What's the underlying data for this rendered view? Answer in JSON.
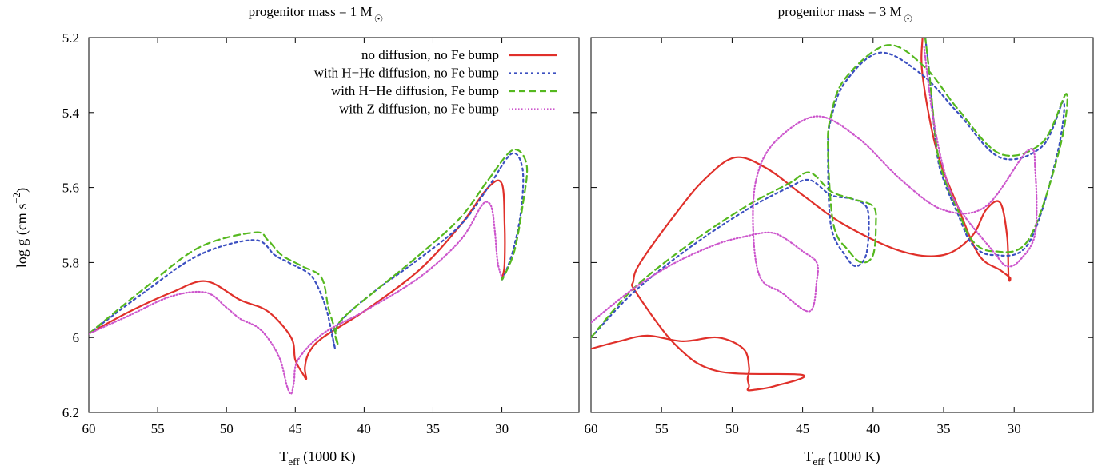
{
  "figure": {
    "ylabel_main": "log g (cm s",
    "ylabel_exp": "−2",
    "ylabel_close": ")",
    "xlabel_main": "T",
    "xlabel_sub": "eff",
    "xlabel_rest": " (1000 K)"
  },
  "colors": {
    "no_diffusion": "#e0302a",
    "hhe_no_fe": "#3b4fc0",
    "hhe_fe": "#55b81f",
    "z_no_fe": "#cc55cc"
  },
  "chart_data": [
    {
      "type": "line",
      "title_main": "progenitor mass = 1 M",
      "title_sun": "☉",
      "xlabel": "T_eff (1000 K)",
      "ylabel": "log g (cm s^-2)",
      "xlim": [
        60,
        24.4
      ],
      "ylim": [
        6.2,
        5.2
      ],
      "x_ticks": [
        "60",
        "55",
        "50",
        "45",
        "40",
        "35",
        "30"
      ],
      "y_ticks": [
        "5.2",
        "5.4",
        "5.6",
        "5.8",
        "6",
        "6.2"
      ],
      "legend_position": "top-right",
      "series": [
        {
          "name": "no diffusion, no Fe bump",
          "color": "#e0302a",
          "dash": "",
          "x": [
            60,
            57,
            54,
            51.5,
            49,
            47,
            45.3,
            45,
            44.4,
            44.2,
            44.3,
            44,
            43,
            40,
            36,
            33,
            31,
            30,
            29.8,
            29.8,
            29.9,
            30
          ],
          "y": [
            5.99,
            5.93,
            5.88,
            5.85,
            5.9,
            5.93,
            6,
            6.06,
            6.1,
            6.11,
            6.08,
            6.04,
            6,
            5.93,
            5.82,
            5.7,
            5.6,
            5.59,
            5.7,
            5.8,
            5.83,
            5.84
          ]
        },
        {
          "name": "with H−He diffusion, no Fe bump",
          "color": "#3b4fc0",
          "dash": "3,4",
          "x": [
            60,
            56,
            52,
            48,
            46.5,
            45.5,
            44,
            43.3,
            42.7,
            42.3,
            42.1,
            42.3,
            42,
            41,
            39,
            36,
            33,
            31,
            29.3,
            28.5,
            28.6,
            29.2,
            29.9,
            30
          ],
          "y": [
            5.99,
            5.88,
            5.78,
            5.74,
            5.78,
            5.8,
            5.83,
            5.87,
            5.93,
            6,
            6.03,
            5.99,
            5.97,
            5.93,
            5.87,
            5.79,
            5.7,
            5.6,
            5.51,
            5.55,
            5.66,
            5.77,
            5.84,
            5.84
          ]
        },
        {
          "name": "with H−He diffusion, Fe bump",
          "color": "#55b81f",
          "dash": "8,5",
          "x": [
            60,
            56,
            52,
            48,
            47,
            46,
            44.5,
            43.1,
            42.6,
            42.2,
            41.9,
            42.1,
            41.8,
            41,
            39,
            36,
            33,
            31,
            29.2,
            28.2,
            28.5,
            29.1,
            29.9,
            30
          ],
          "y": [
            5.99,
            5.87,
            5.76,
            5.72,
            5.74,
            5.78,
            5.81,
            5.84,
            5.92,
            5.97,
            6.02,
            5.99,
            5.96,
            5.93,
            5.87,
            5.78,
            5.68,
            5.58,
            5.5,
            5.54,
            5.65,
            5.77,
            5.84,
            5.84
          ]
        },
        {
          "name": "with Z diffusion, no Fe bump",
          "color": "#cc55cc",
          "dash": "1.5,2.5",
          "x": [
            60,
            57,
            54,
            51.5,
            50,
            49,
            47.5,
            46.2,
            45.6,
            45.3,
            45.1,
            44.8,
            43,
            40,
            36,
            33,
            31.5,
            31,
            30.7,
            30.5,
            30.3,
            30
          ],
          "y": [
            5.99,
            5.94,
            5.89,
            5.88,
            5.92,
            5.95,
            5.98,
            6.05,
            6.13,
            6.15,
            6.12,
            6.06,
            5.99,
            5.93,
            5.84,
            5.74,
            5.65,
            5.64,
            5.66,
            5.72,
            5.8,
            5.84
          ]
        }
      ]
    },
    {
      "type": "line",
      "title_main": "progenitor mass = 3 M",
      "title_sun": "☉",
      "xlabel": "T_eff (1000 K)",
      "ylabel": "",
      "xlim": [
        60,
        24.4
      ],
      "ylim": [
        6.2,
        5.2
      ],
      "x_ticks": [
        "60",
        "55",
        "50",
        "45",
        "40",
        "35",
        "30"
      ],
      "y_ticks": [],
      "legend_position": "none",
      "series": [
        {
          "name": "no diffusion, no Fe bump",
          "color": "#e0302a",
          "dash": "",
          "x": [
            60,
            58,
            56,
            53.5,
            51,
            49.2,
            48.8,
            48.9,
            48.8,
            48.9,
            48.5,
            47,
            45,
            51,
            54,
            56.8,
            57,
            56.5,
            54,
            52,
            49.8,
            47.5,
            45,
            42,
            38,
            35,
            33,
            32,
            31,
            30.5,
            30.4,
            30.3,
            31,
            32.5,
            34,
            35.5,
            36.5,
            36.5
          ],
          "y": [
            6.03,
            6.01,
            5.995,
            6.01,
            6,
            6.03,
            6.08,
            6.11,
            6.13,
            6.14,
            6.14,
            6.13,
            6.1,
            6.09,
            6.02,
            5.88,
            5.85,
            5.8,
            5.67,
            5.58,
            5.52,
            5.55,
            5.62,
            5.7,
            5.77,
            5.78,
            5.73,
            5.66,
            5.64,
            5.73,
            5.84,
            5.84,
            5.82,
            5.78,
            5.65,
            5.5,
            5.3,
            5.2
          ]
        },
        {
          "name": "with H−He diffusion, no Fe bump",
          "color": "#3b4fc0",
          "dash": "3,4",
          "x": [
            60,
            57,
            53,
            49,
            46,
            44.5,
            43,
            41.5,
            40.5,
            40.3,
            40.5,
            41.2,
            42,
            43,
            43.2,
            43,
            42,
            39.5,
            36.5,
            34,
            31,
            28,
            26.5,
            27,
            29,
            31.5,
            33,
            34,
            35,
            35.5,
            36,
            36.3
          ],
          "y": [
            6,
            5.88,
            5.76,
            5.66,
            5.6,
            5.58,
            5.62,
            5.63,
            5.65,
            5.7,
            5.78,
            5.81,
            5.78,
            5.7,
            5.5,
            5.42,
            5.32,
            5.24,
            5.3,
            5.4,
            5.52,
            5.49,
            5.37,
            5.52,
            5.75,
            5.78,
            5.75,
            5.67,
            5.58,
            5.5,
            5.3,
            5.2
          ]
        },
        {
          "name": "with H−He diffusion, Fe bump",
          "color": "#55b81f",
          "dash": "8,5",
          "x": [
            60,
            57,
            53,
            49,
            46,
            44.5,
            43,
            41.5,
            40,
            39.8,
            40,
            40.8,
            41.7,
            42.8,
            43.2,
            43,
            42,
            39,
            36.3,
            34,
            31,
            28,
            26.3,
            26.8,
            29,
            31.5,
            33,
            34,
            35,
            35.5,
            36,
            36.3
          ],
          "y": [
            6,
            5.87,
            5.75,
            5.65,
            5.59,
            5.56,
            5.61,
            5.63,
            5.65,
            5.7,
            5.78,
            5.8,
            5.77,
            5.7,
            5.5,
            5.41,
            5.31,
            5.22,
            5.28,
            5.39,
            5.51,
            5.48,
            5.35,
            5.5,
            5.74,
            5.77,
            5.74,
            5.66,
            5.57,
            5.49,
            5.3,
            5.2
          ]
        },
        {
          "name": "with Z diffusion, no Fe bump",
          "color": "#cc55cc",
          "dash": "1.5,2.5",
          "x": [
            60,
            57,
            54,
            51,
            49,
            47.5,
            46.5,
            45,
            44,
            44,
            44.5,
            46.5,
            48,
            48.5,
            48.3,
            47,
            44,
            41,
            38,
            35,
            32,
            29,
            28.5,
            28.5,
            29.5,
            30.5,
            31.5,
            34,
            35,
            35.8,
            36.4
          ],
          "y": [
            5.96,
            5.87,
            5.8,
            5.75,
            5.73,
            5.72,
            5.73,
            5.77,
            5.8,
            5.85,
            5.93,
            5.88,
            5.84,
            5.72,
            5.58,
            5.48,
            5.41,
            5.47,
            5.58,
            5.66,
            5.65,
            5.5,
            5.56,
            5.72,
            5.79,
            5.81,
            5.77,
            5.65,
            5.55,
            5.4,
            5.22
          ]
        }
      ]
    }
  ]
}
